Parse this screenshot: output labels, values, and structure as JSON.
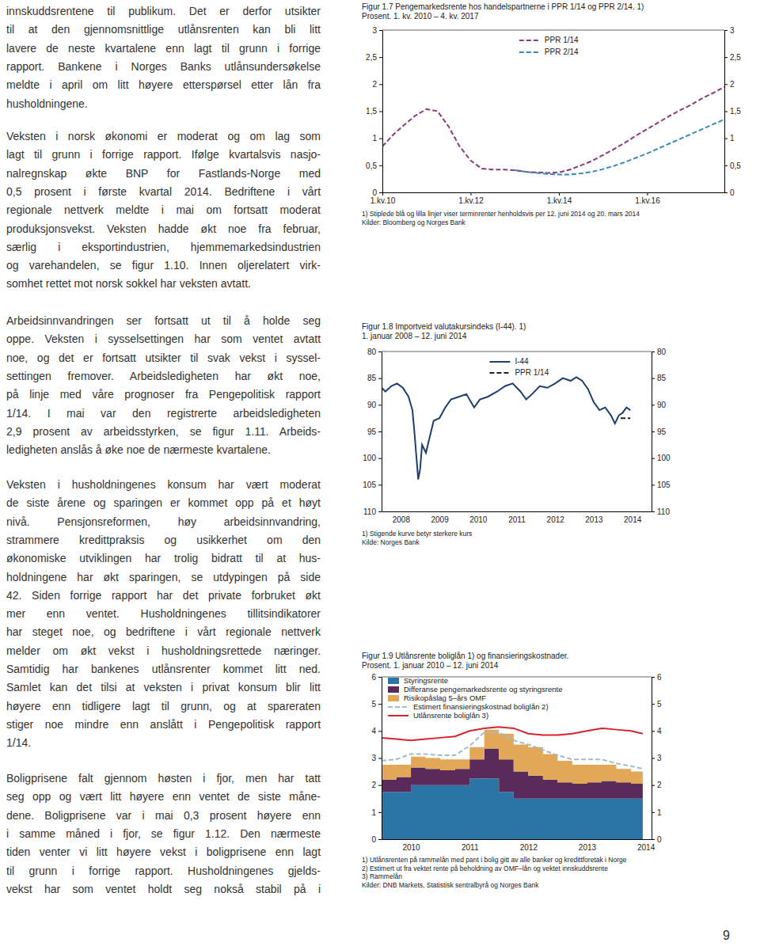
{
  "text": {
    "paragraphs": [
      [
        "innskuddsrentene til publikum. Det er derfor utsikter",
        "til at den gjennomsnittlige utlånsrenten kan bli litt",
        "lavere de neste kvartalene enn lagt til grunn i forrige",
        "rapport. Bankene i Norges Banks utlånsundersøkelse",
        "meldte i april om litt høyere etterspørsel etter lån fra",
        "husholdningene."
      ],
      [
        "Veksten i norsk økonomi er moderat og om lag som",
        "lagt til grunn i forrige rapport. Ifølge kvartalsvis nasjo-",
        "nalregnskap økte BNP for Fastlands-Norge med",
        "0,5 prosent i første kvartal 2014. Bedriftene i vårt",
        "regionale nettverk meldte i mai om fortsatt moderat",
        "produksjonsvekst. Veksten hadde økt noe fra februar,",
        "særlig i eksportindustrien, hjemmemarkedsindustrien",
        "og varehandelen, se figur 1.10. Innen oljerelatert virk-",
        "somhet rettet mot norsk sokkel har veksten avtatt."
      ],
      [
        "Arbeidsinnvandringen ser fortsatt ut til å holde seg",
        "oppe. Veksten i sysselsettingen har som ventet avtatt",
        "noe, og det er fortsatt utsikter til svak vekst i syssel-",
        "settingen fremover. Arbeidsledigheten har økt noe,",
        "på linje med våre prognoser fra Pengepolitisk rapport",
        "1/14. I mai var den registrerte arbeidsledigheten",
        "2,9 prosent av arbeidsstyrken, se figur 1.11. Arbeids-",
        "ledigheten anslås å øke noe de nærmeste kvartalene."
      ],
      [
        "Veksten i husholdningenes konsum har vært moderat",
        "de siste årene og sparingen er kommet opp på et høyt",
        "nivå. Pensjonsreformen, høy arbeidsinnvandring,",
        "strammere kredittpraksis og usikkerhet om den",
        "økonomiske utviklingen har trolig bidratt til at hus-",
        "holdningene har økt sparingen, se utdypingen på side",
        "42. Siden forrige rapport har det private forbruket økt",
        "mer enn ventet. Husholdningenes tillitsindikatorer",
        "har steget noe, og bedriftene i vårt regionale nettverk",
        "melder om økt vekst i husholdningsrettede næringer.",
        "Samtidig har bankenes utlånsrenter kommet litt ned.",
        "Samlet kan det tilsi at veksten i privat konsum blir litt",
        "høyere enn tidligere lagt til grunn, og at spareraten",
        "stiger noe mindre enn anslått i Pengepolitisk rapport",
        "1/14."
      ],
      [
        "Boligprisene falt gjennom høsten i fjor, men har tatt",
        "seg opp og vært litt høyere enn ventet de siste måne-",
        "dene. Boligprisene var i mai 0,3 prosent høyere enn",
        "i samme måned i fjor, se figur 1.12. Den nærmeste",
        "tiden venter vi litt høyere vekst i boligprisene enn lagt",
        "til grunn i forrige rapport. Husholdningenes gjelds-",
        "vekst har som ventet holdt seg nokså stabil på i"
      ]
    ],
    "page_number": "9"
  },
  "chart_data": [
    {
      "type": "line",
      "title": "Figur 1.7 Pengemarkedsrente hos handelspartnerne i PPR 1/14 og PPR 2/14. 1)",
      "subtitle": "Prosent. 1. kv. 2010 – 4. kv. 2017",
      "categories": [
        "1.kv.10",
        null,
        null,
        null,
        null,
        null,
        null,
        null,
        "1.kv.12",
        null,
        null,
        null,
        null,
        null,
        null,
        null,
        "1.kv.14",
        null,
        null,
        null,
        null,
        null,
        null,
        null,
        "1.kv.16",
        null,
        null,
        null,
        null,
        null,
        null,
        null
      ],
      "series": [
        {
          "name": "PPR 1/14",
          "color": "#8b3b7e",
          "line_style": "dashed",
          "values": [
            0.85,
            1.07,
            1.25,
            1.42,
            1.54,
            1.5,
            1.22,
            0.85,
            0.59,
            0.44,
            0.42,
            0.42,
            0.41,
            0.38,
            0.37,
            0.36,
            0.37,
            0.42,
            0.5,
            0.58,
            0.69,
            0.8,
            0.92,
            1.05,
            1.17,
            1.29,
            1.41,
            1.52,
            1.62,
            1.74,
            1.84,
            1.95
          ]
        },
        {
          "name": "PPR 2/14",
          "color": "#3a87c0",
          "line_style": "dashed",
          "values": [
            null,
            null,
            null,
            null,
            null,
            null,
            null,
            null,
            null,
            null,
            null,
            null,
            0.41,
            0.38,
            0.36,
            0.34,
            0.33,
            0.33,
            0.35,
            0.38,
            0.43,
            0.49,
            0.56,
            0.64,
            0.72,
            0.81,
            0.9,
            0.99,
            1.08,
            1.17,
            1.26,
            1.35
          ]
        }
      ],
      "ylim": [
        0,
        3
      ],
      "yticks": [
        0,
        {
          "value": 0.5,
          "label": "0,5"
        },
        1,
        {
          "value": 1.5,
          "label": "1,5"
        },
        2,
        {
          "value": 2.5,
          "label": "2,5"
        },
        3
      ],
      "grid": false,
      "legend": "top",
      "annotations": [
        "1) Stiplede blå og lilla linjer viser terminrenter henholdsvis per 12. juni 2014 og 20. mars 2014",
        "Kilder: Bloomberg og Norges Bank"
      ]
    },
    {
      "type": "line",
      "title": "Figur 1.8 Importveid valutakursindeks (I-44). 1)",
      "subtitle": "1. januar 2008 – 12. juni 2014",
      "series": [
        {
          "name": "I-44",
          "color": "#1f3e70",
          "line_style": "solid",
          "x": [
            2008.0,
            2008.1,
            2008.25,
            2008.4,
            2008.55,
            2008.7,
            2008.8,
            2008.85,
            2008.9,
            2008.95,
            2009.0,
            2009.05,
            2009.15,
            2009.25,
            2009.35,
            2009.5,
            2009.65,
            2009.8,
            2010.0,
            2010.2,
            2010.4,
            2010.55,
            2010.75,
            2011.0,
            2011.2,
            2011.4,
            2011.6,
            2011.75,
            2011.9,
            2012.1,
            2012.3,
            2012.5,
            2012.7,
            2012.9,
            2013.05,
            2013.2,
            2013.35,
            2013.5,
            2013.65,
            2013.8,
            2013.95,
            2014.05,
            2014.15,
            2014.25,
            2014.35,
            2014.45
          ],
          "values": [
            86.8,
            87.5,
            86.5,
            86.0,
            86.8,
            88.5,
            91.0,
            95.0,
            99.5,
            104.0,
            102.0,
            97.5,
            99.0,
            96.0,
            93.0,
            92.5,
            90.5,
            89.0,
            88.5,
            88.0,
            90.5,
            89.0,
            88.5,
            87.5,
            86.5,
            86.0,
            87.5,
            89.0,
            88.0,
            86.5,
            86.8,
            86.0,
            85.0,
            85.5,
            84.8,
            85.5,
            87.0,
            89.5,
            91.0,
            90.5,
            92.0,
            93.5,
            92.0,
            91.5,
            90.5,
            91.0
          ]
        },
        {
          "name": "PPR 1/14",
          "color": "#222222",
          "line_style": "dashed",
          "x": [
            2014.2,
            2014.45
          ],
          "values": [
            92.5,
            92.5
          ]
        }
      ],
      "xlim": [
        2008,
        2015
      ],
      "xticks": [
        {
          "value": 2008.5,
          "label": "2008"
        },
        {
          "value": 2009.5,
          "label": "2009"
        },
        {
          "value": 2010.5,
          "label": "2010"
        },
        {
          "value": 2011.5,
          "label": "2011"
        },
        {
          "value": 2012.5,
          "label": "2012"
        },
        {
          "value": 2013.5,
          "label": "2013"
        },
        {
          "value": 2014.5,
          "label": "2014"
        }
      ],
      "ylim": [
        110,
        80
      ],
      "yticks": [
        80,
        85,
        90,
        95,
        100,
        105,
        110
      ],
      "grid": false,
      "legend": "top",
      "annotations": [
        "1) Stigende kurve betyr sterkere kurs",
        "Kilde: Norges Bank"
      ]
    },
    {
      "type": "area",
      "stacked": true,
      "title": "Figur 1.9 Utlånsrente boliglån 1) og finansieringskostnader.",
      "subtitle": "Prosent. 1. januar 2010 – 12. juni 2014",
      "x": [
        2010.0,
        2010.25,
        2010.5,
        2010.75,
        2011.0,
        2011.25,
        2011.5,
        2011.75,
        2012.0,
        2012.25,
        2012.5,
        2012.75,
        2013.0,
        2013.25,
        2013.5,
        2013.75,
        2014.0,
        2014.25,
        2014.45
      ],
      "series": [
        {
          "name": "Styringsrente",
          "type": "area",
          "color": "#2a74a6",
          "values": [
            1.75,
            1.75,
            2.0,
            2.0,
            2.0,
            2.0,
            2.25,
            2.25,
            1.75,
            1.5,
            1.5,
            1.5,
            1.5,
            1.5,
            1.5,
            1.5,
            1.5,
            1.5,
            1.5
          ]
        },
        {
          "name": "Differanse pengemarkedsrente og styringsrente",
          "type": "area",
          "color": "#5a2a5a",
          "values": [
            0.45,
            0.55,
            0.65,
            0.6,
            0.55,
            0.6,
            0.7,
            1.1,
            1.2,
            1.0,
            0.85,
            0.7,
            0.6,
            0.55,
            0.6,
            0.65,
            0.6,
            0.55,
            0.5
          ]
        },
        {
          "name": "Risikopåslag 5–års OMF",
          "type": "area",
          "color": "#e3a857",
          "values": [
            0.55,
            0.45,
            0.4,
            0.4,
            0.4,
            0.35,
            0.45,
            0.7,
            0.95,
            1.0,
            1.05,
            0.95,
            0.8,
            0.7,
            0.65,
            0.6,
            0.5,
            0.45,
            0.4
          ]
        },
        {
          "name": "Estimert finansieringskostnad boliglån 2)",
          "type": "line",
          "line_style": "dashed",
          "color": "#9fbccd",
          "values": [
            2.9,
            2.95,
            3.15,
            3.15,
            3.1,
            3.1,
            3.45,
            3.95,
            3.95,
            3.65,
            3.5,
            3.3,
            3.1,
            2.95,
            2.95,
            2.95,
            2.8,
            2.7,
            2.6
          ]
        },
        {
          "name": "Utlånsrente boliglån 3)",
          "type": "line",
          "line_style": "solid",
          "color": "#d8242c",
          "values": [
            3.75,
            3.7,
            3.65,
            3.7,
            3.75,
            3.8,
            4.0,
            4.1,
            4.15,
            4.1,
            3.9,
            3.85,
            3.85,
            3.9,
            4.0,
            4.1,
            4.05,
            4.0,
            3.9
          ]
        }
      ],
      "xlim": [
        2010,
        2014.6
      ],
      "xticks": [
        {
          "value": 2010.5,
          "label": "2010"
        },
        {
          "value": 2011.5,
          "label": "2011"
        },
        {
          "value": 2012.5,
          "label": "2012"
        },
        {
          "value": 2013.5,
          "label": "2013"
        },
        {
          "value": 2014.5,
          "label": "2014"
        }
      ],
      "ylim": [
        0,
        6
      ],
      "yticks": [
        0,
        1,
        2,
        3,
        4,
        5,
        6
      ],
      "grid": false,
      "legend": "top-left",
      "annotations": [
        "1) Utlånsrenten på rammelån med pant i bolig gitt av alle banker og kredittforetak i Norge",
        "2) Estimert ut fra vektet rente på beholdning av OMF–lån og vektet innskuddsrente",
        "3) Rammelån",
        "Kilder: DNB Markets, Statistisk sentralbyrå og Norges Bank"
      ]
    }
  ]
}
